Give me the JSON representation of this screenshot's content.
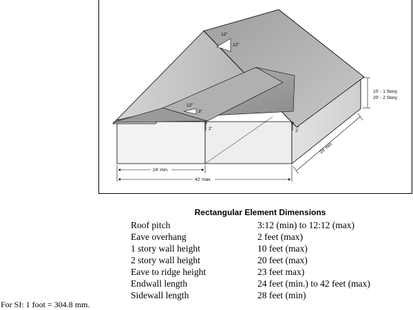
{
  "figure": {
    "labels": {
      "main_pitch_rise": "12\"",
      "main_pitch_run": "12\"",
      "low_pitch_run": "12\"",
      "low_pitch_rise": "3\"",
      "eave_overhang_left": "2'",
      "eave_overhang_right": "2'",
      "wall_height_1": "10' - 1 Story",
      "wall_height_2": "20' - 2 Story",
      "sidewall_length": "28' min.",
      "endwall_min": "24' min.",
      "endwall_max": "42' max."
    },
    "colors": {
      "roof_dark": "#8c8c8c",
      "roof_mid": "#a9a9a9",
      "roof_light": "#c4c4c4",
      "wall_front": "#f2f2f2",
      "wall_side": "#dcdcdc"
    }
  },
  "table": {
    "title": "Rectangular Element Dimensions",
    "rows": [
      {
        "label": "Roof pitch",
        "value": "3:12 (min) to 12:12 (max)"
      },
      {
        "label": "Eave overhang",
        "value": "2 feet (max)"
      },
      {
        "label": "1 story wall height",
        "value": "10 feet (max)"
      },
      {
        "label": "2 story wall height",
        "value": "20 feet (max)"
      },
      {
        "label": "Eave to ridge height",
        "value": "23 feet max)"
      },
      {
        "label": "Endwall length",
        "value": "24 feet (min.) to 42 feet (max)"
      },
      {
        "label": "Sidewall length",
        "value": "28 feet (min)"
      }
    ]
  },
  "note": "For SI: 1 foot = 304.8 mm."
}
